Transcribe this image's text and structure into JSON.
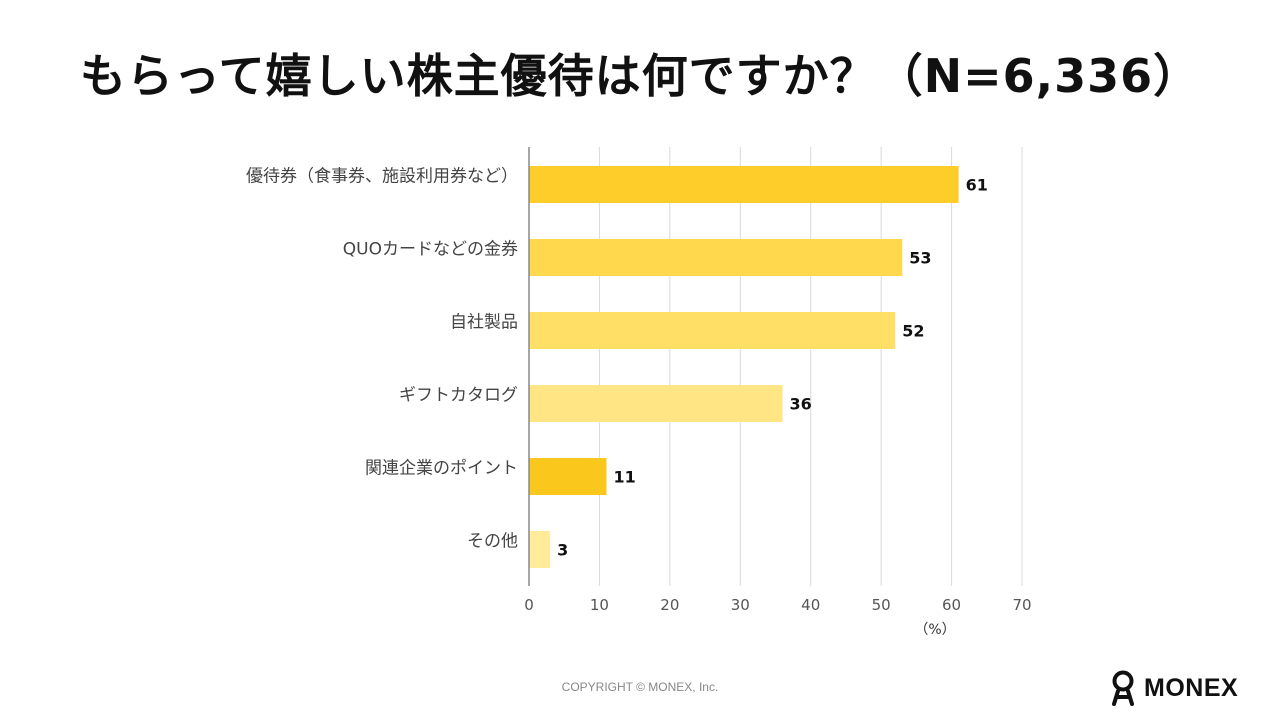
{
  "title": "もらって嬉しい株主優待は何ですか？（N=6,336）",
  "chart_data": {
    "type": "bar",
    "orientation": "horizontal",
    "categories": [
      "優待券（食事券、施設利用券など）",
      "QUOカードなどの金券",
      "自社製品",
      "ギフトカタログ",
      "関連企業のポイント",
      "その他"
    ],
    "values": [
      61,
      53,
      52,
      36,
      11,
      3
    ],
    "colors": [
      "#FFCD2A",
      "#FFD84D",
      "#FFDF66",
      "#FFE584",
      "#FAC81C",
      "#FFEB99"
    ],
    "xticks": [
      0,
      10,
      20,
      30,
      40,
      50,
      60,
      70
    ],
    "xlim": [
      0,
      70
    ],
    "xunit": "（%）",
    "grid": true
  },
  "footer": {
    "copyright": "COPYRIGHT © MONEX, Inc.",
    "logo_text": "MONEX",
    "logo_icon": "monex-figure-icon"
  }
}
